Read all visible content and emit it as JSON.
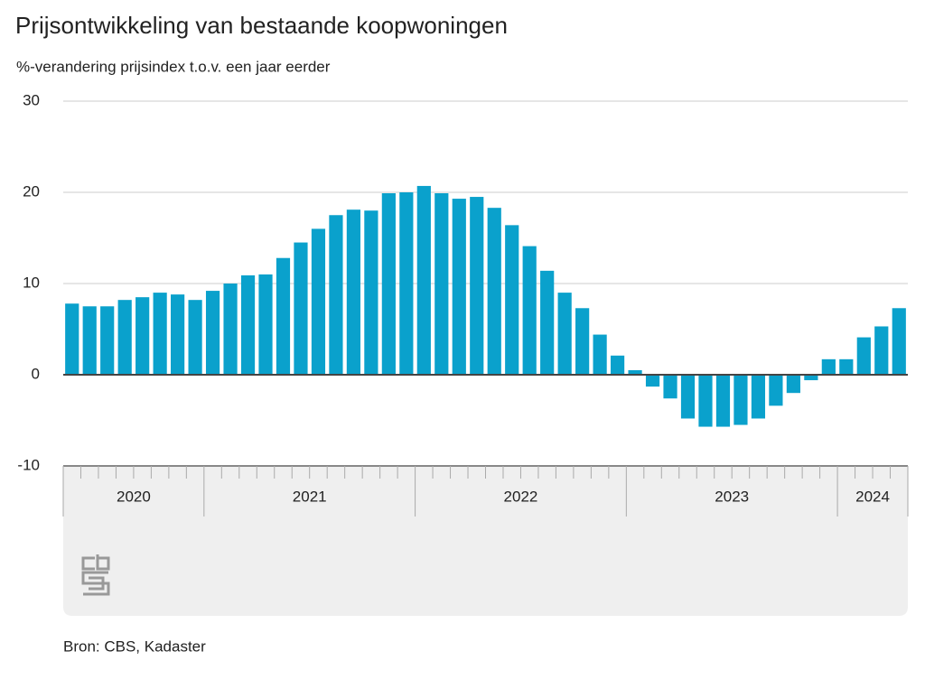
{
  "chart_data": {
    "type": "bar",
    "title": "Prijsontwikkeling van bestaande koopwoningen",
    "subtitle": "%-verandering prijsindex t.o.v. een jaar eerder",
    "source": "Bron: CBS, Kadaster",
    "categories": [
      "2020",
      "2020",
      "2020",
      "2020",
      "2020",
      "2020",
      "2020",
      "2020",
      "2021",
      "2021",
      "2021",
      "2021",
      "2021",
      "2021",
      "2021",
      "2021",
      "2021",
      "2021",
      "2021",
      "2021",
      "2022",
      "2022",
      "2022",
      "2022",
      "2022",
      "2022",
      "2022",
      "2022",
      "2022",
      "2022",
      "2022",
      "2022",
      "2023",
      "2023",
      "2023",
      "2023",
      "2023",
      "2023",
      "2023",
      "2023",
      "2023",
      "2023",
      "2023",
      "2023",
      "2024",
      "2024",
      "2024",
      "2024"
    ],
    "values": [
      7.8,
      7.5,
      7.5,
      8.2,
      8.5,
      9.0,
      8.8,
      8.2,
      9.2,
      10.0,
      10.9,
      11.0,
      12.8,
      14.5,
      16.0,
      17.5,
      18.1,
      18.0,
      19.9,
      20.0,
      20.7,
      19.9,
      19.3,
      19.5,
      18.3,
      16.4,
      14.1,
      11.4,
      9.0,
      7.3,
      4.4,
      2.1,
      0.5,
      -1.3,
      -2.6,
      -4.8,
      -5.7,
      -5.7,
      -5.5,
      -4.8,
      -3.4,
      -2.0,
      -0.6,
      1.7,
      1.7,
      4.1,
      5.3,
      7.3
    ],
    "color": "#0aa1cc",
    "ylim": [
      -10,
      30
    ],
    "yticks": [
      -10,
      0,
      10,
      20,
      30
    ],
    "grid": true
  }
}
